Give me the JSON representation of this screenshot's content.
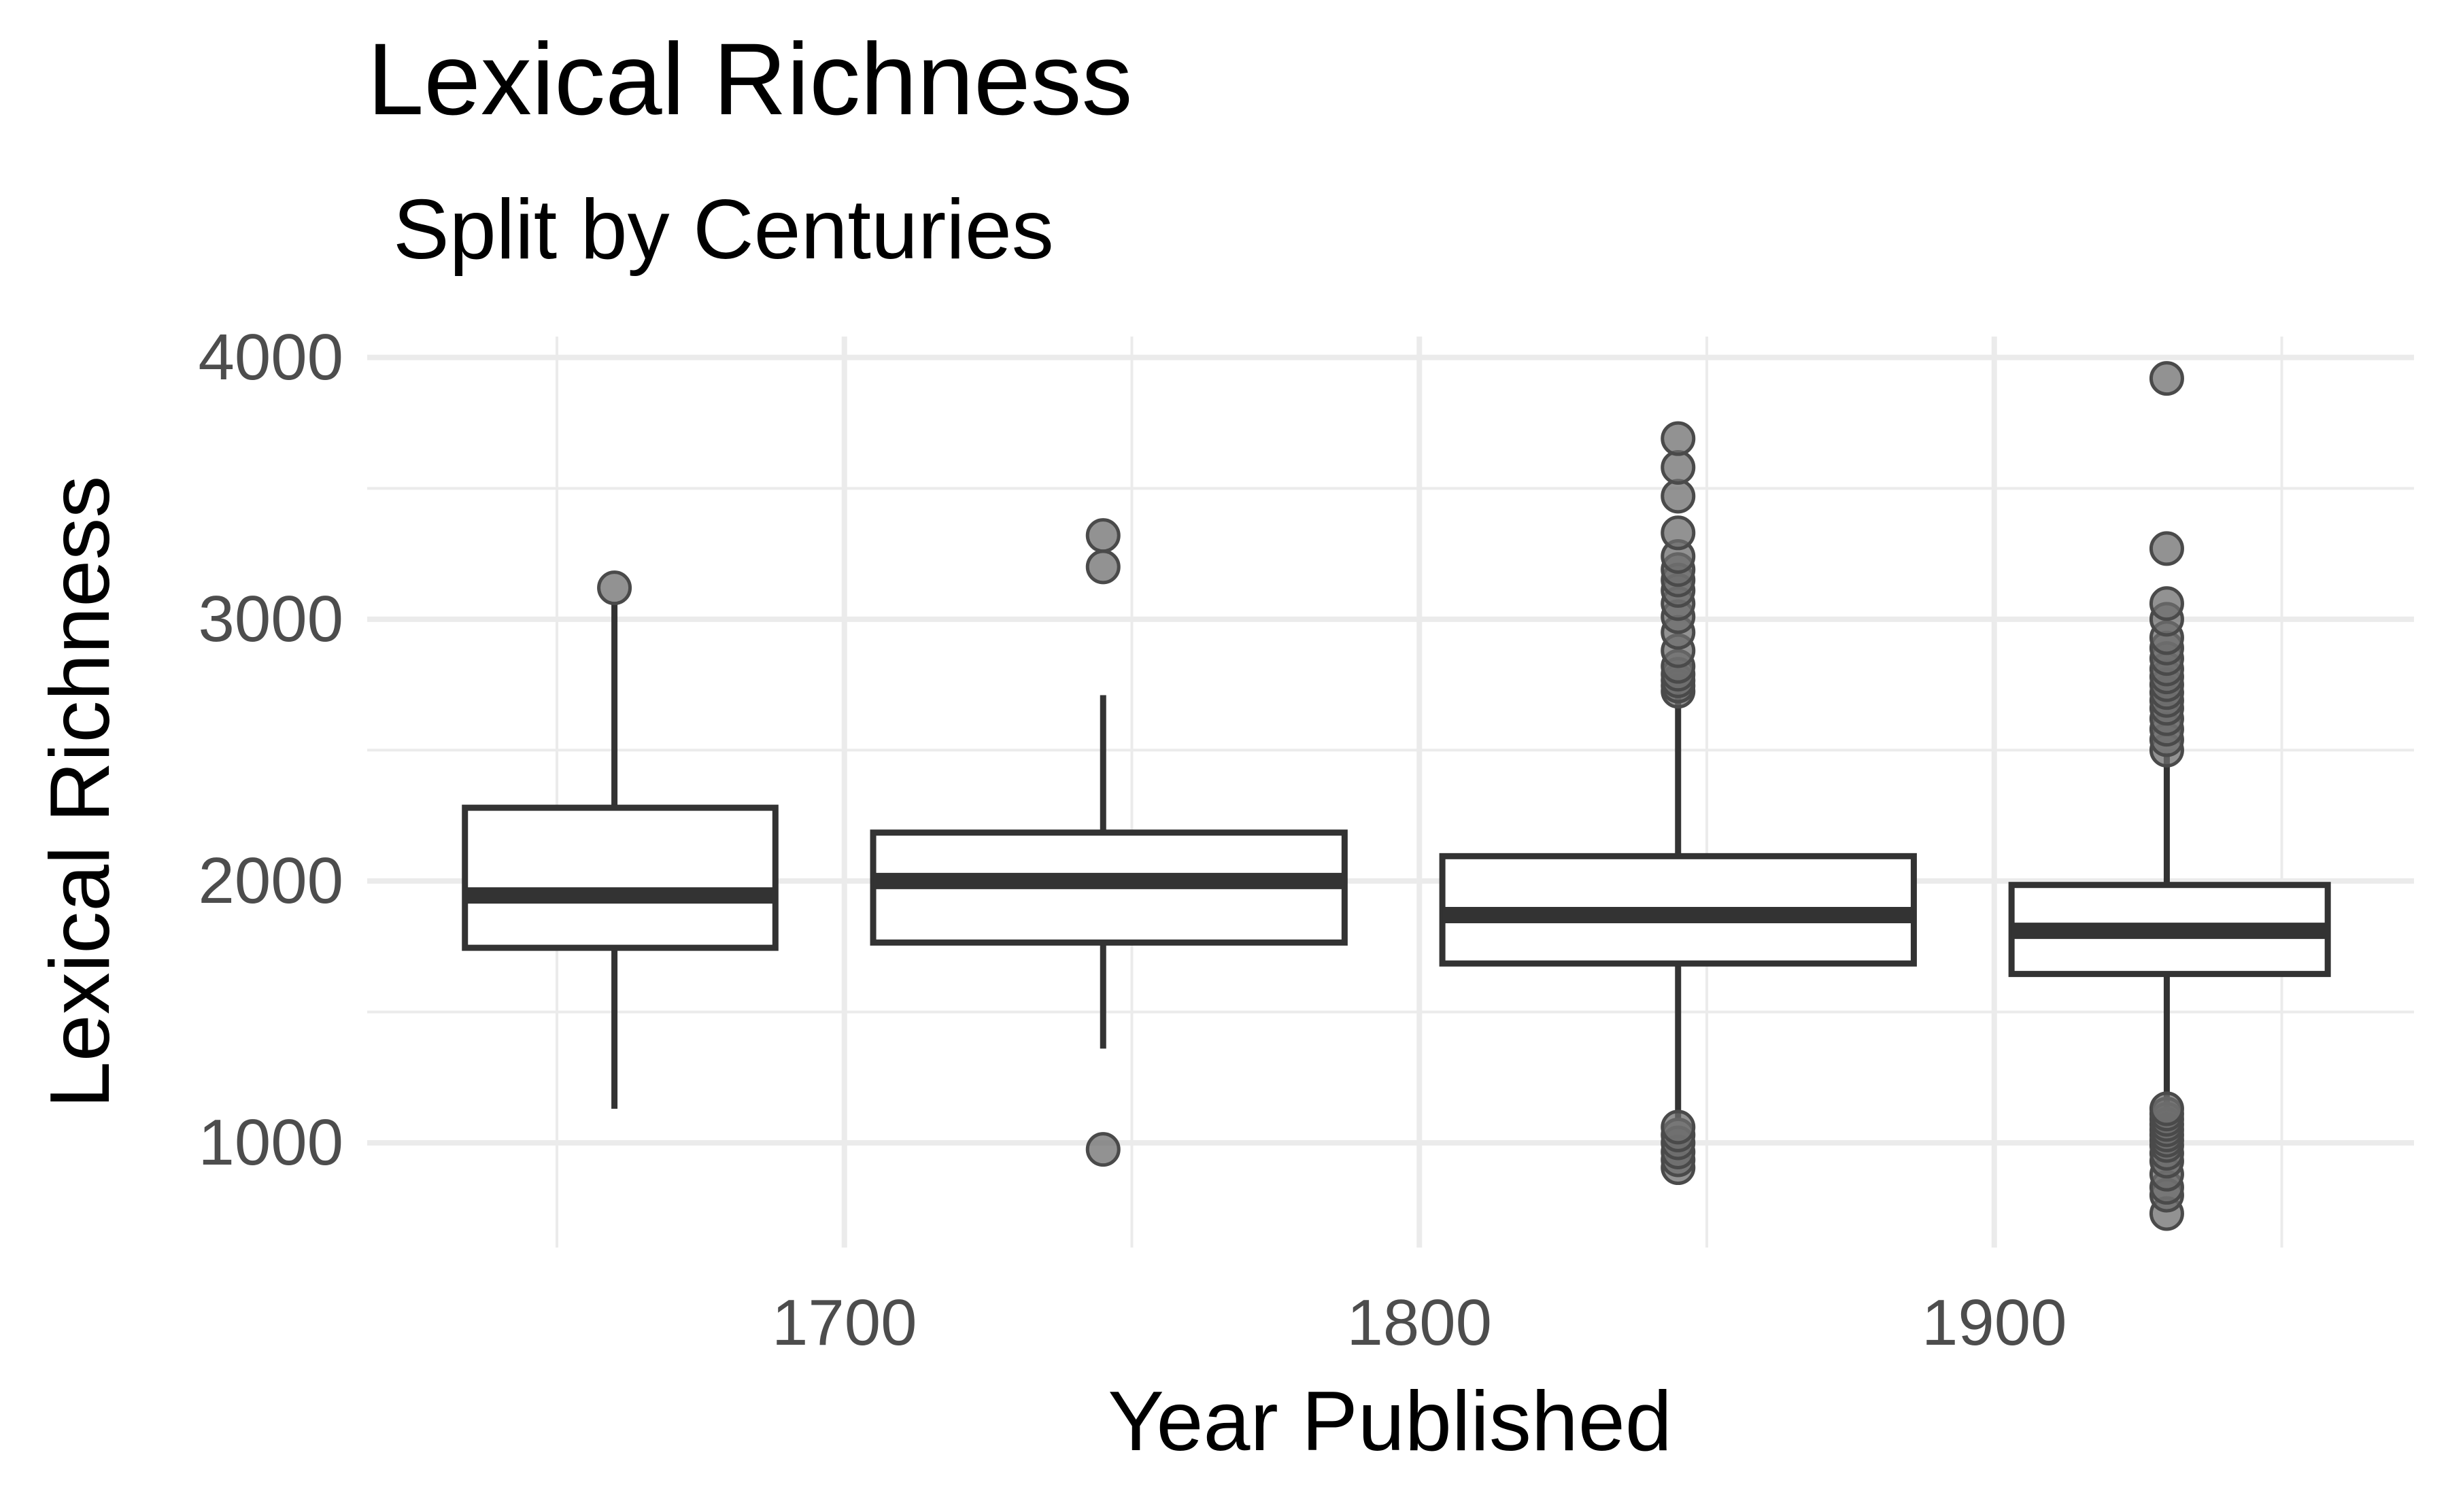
{
  "chart_data": {
    "type": "boxplot",
    "title": "Lexical Richness",
    "subtitle": "Split by Centuries",
    "xlabel": "Year Published",
    "ylabel": "Lexical Richness",
    "xlim": [
      1617,
      1973
    ],
    "ylim": [
      600,
      4080
    ],
    "x_ticks": [
      1700,
      1800,
      1900
    ],
    "x_minor_ticks": [
      1650,
      1750,
      1850,
      1950
    ],
    "y_ticks": [
      1000,
      2000,
      3000,
      4000
    ],
    "y_minor_ticks": [
      1500,
      2500,
      3500
    ],
    "grid": true,
    "colors": {
      "box_stroke": "#333333",
      "box_fill": "#ffffff",
      "outlier": "#6e6e6e",
      "grid": "#ebebeb"
    },
    "boxes": [
      {
        "x": 1660,
        "x_start": 1634,
        "x_end": 1688,
        "q1": 1745,
        "median": 1945,
        "q3": 2280,
        "whisker_low": 1130,
        "whisker_high": 3060,
        "outliers": [
          3120
        ]
      },
      {
        "x": 1745,
        "x_start": 1705,
        "x_end": 1787,
        "q1": 1765,
        "median": 2000,
        "q3": 2185,
        "whisker_low": 1360,
        "whisker_high": 2710,
        "outliers": [
          975,
          3200,
          3320
        ]
      },
      {
        "x": 1845,
        "x_start": 1804,
        "x_end": 1886,
        "q1": 1685,
        "median": 1870,
        "q3": 2095,
        "whisker_low": 1090,
        "whisker_high": 2720,
        "outliers": [
          905,
          935,
          965,
          1000,
          1030,
          1060,
          2725,
          2745,
          2765,
          2790,
          2820,
          2880,
          2950,
          3010,
          3060,
          3110,
          3150,
          3190,
          3240,
          3330,
          3470,
          3580,
          3690
        ]
      },
      {
        "x": 1930,
        "x_start": 1903,
        "x_end": 1958,
        "q1": 1645,
        "median": 1810,
        "q3": 1985,
        "whisker_low": 1135,
        "whisker_high": 2490,
        "outliers": [
          730,
          800,
          830,
          880,
          930,
          960,
          990,
          1010,
          1030,
          1050,
          1070,
          1090,
          1110,
          1130,
          2500,
          2540,
          2580,
          2620,
          2660,
          2690,
          2720,
          2750,
          2780,
          2810,
          2850,
          2890,
          2930,
          3000,
          3060,
          3270,
          3920
        ]
      }
    ]
  }
}
